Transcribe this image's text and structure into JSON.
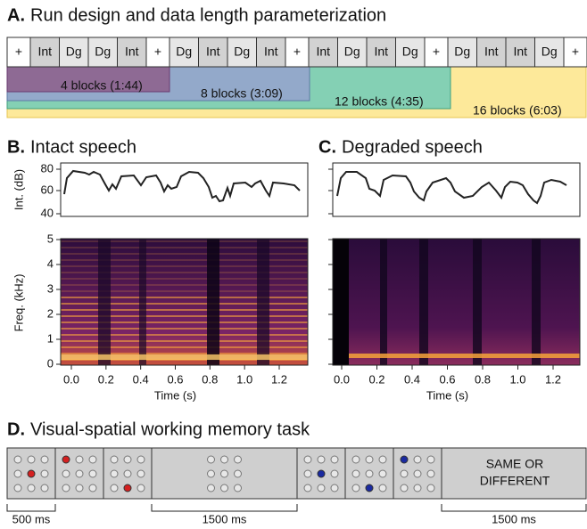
{
  "panel_a": {
    "label": "A.",
    "title": "Run design and data length parameterization",
    "sequence": [
      "+",
      "Int",
      "Dg",
      "Dg",
      "Int",
      "+",
      "Dg",
      "Int",
      "Dg",
      "Int",
      "+",
      "Int",
      "Dg",
      "Int",
      "Dg",
      "+",
      "Dg",
      "Int",
      "Int",
      "Dg",
      "+"
    ],
    "spans": [
      "4 blocks (1:44)",
      "8 blocks (3:09)",
      "12 blocks (4:35)",
      "16 blocks (6:03)"
    ]
  },
  "panel_b": {
    "label": "B.",
    "title": "Intact speech",
    "intensity_label": "Int. (dB)",
    "intensity_ticks": [
      "80",
      "60",
      "40"
    ],
    "frequency_label": "Freq. (kHz)",
    "frequency_ticks": [
      "5",
      "4",
      "3",
      "2",
      "1",
      "0"
    ],
    "time_label": "Time (s)",
    "time_ticks": [
      "0.0",
      "0.2",
      "0.4",
      "0.6",
      "0.8",
      "1.0",
      "1.2"
    ]
  },
  "panel_c": {
    "label": "C.",
    "title": "Degraded speech",
    "time_label": "Time (s)",
    "time_ticks": [
      "0.0",
      "0.2",
      "0.4",
      "0.6",
      "0.8",
      "1.0",
      "1.2"
    ]
  },
  "panel_d": {
    "label": "D.",
    "title": "Visual-spatial working memory task",
    "response_prompt": [
      "SAME OR",
      "DIFFERENT"
    ],
    "durations": [
      "500 ms",
      "1500 ms",
      "1500 ms"
    ]
  }
}
